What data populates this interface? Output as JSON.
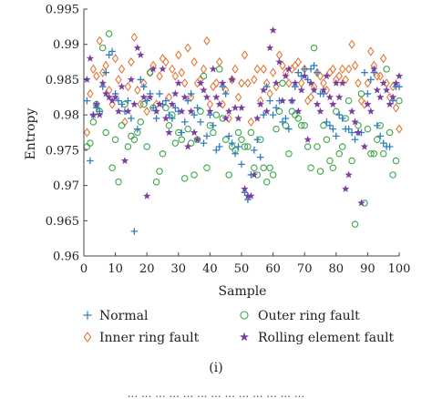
{
  "chart_data": {
    "type": "scatter",
    "xlabel": "Sample",
    "ylabel": "Entropy",
    "xlim": [
      0,
      100
    ],
    "ylim": [
      0.96,
      0.995
    ],
    "xticks": [
      0,
      10,
      20,
      30,
      40,
      50,
      60,
      70,
      80,
      90,
      100
    ],
    "yticks": [
      0.96,
      0.965,
      0.97,
      0.975,
      0.98,
      0.985,
      0.99,
      0.995
    ],
    "xtick_labels": [
      "0",
      "10",
      "20",
      "30",
      "40",
      "50",
      "60",
      "70",
      "80",
      "90",
      "100"
    ],
    "ytick_labels": [
      "0.96",
      "0.965",
      "0.97",
      "0.975",
      "0.98",
      "0.985",
      "0.99",
      "0.995"
    ],
    "grid": false,
    "legend_position": "bottom",
    "panel_label": "(i)",
    "caption_fragment": "... ... ... ... ... ... ... ... ... ... ... ... ...",
    "series": [
      {
        "name": "Normal",
        "marker": "plus",
        "color": "#2f7ec1",
        "x": [
          1,
          2,
          3,
          4,
          5,
          6,
          7,
          8,
          9,
          10,
          11,
          12,
          13,
          14,
          15,
          16,
          17,
          18,
          19,
          20,
          21,
          22,
          23,
          24,
          25,
          26,
          27,
          28,
          29,
          30,
          31,
          32,
          33,
          34,
          35,
          36,
          37,
          38,
          39,
          40,
          41,
          42,
          43,
          44,
          45,
          46,
          47,
          48,
          49,
          50,
          51,
          52,
          53,
          54,
          55,
          56,
          57,
          58,
          59,
          60,
          61,
          62,
          63,
          64,
          65,
          66,
          67,
          68,
          69,
          70,
          71,
          72,
          73,
          74,
          75,
          76,
          77,
          78,
          79,
          80,
          81,
          82,
          83,
          84,
          85,
          86,
          87,
          88,
          89,
          90,
          91,
          92,
          93,
          94,
          95,
          96,
          97,
          98,
          99,
          100
        ],
        "y": [
          0.982,
          0.9735,
          0.98,
          0.981,
          0.9805,
          0.984,
          0.986,
          0.9885,
          0.989,
          0.983,
          0.982,
          0.9815,
          0.9805,
          0.982,
          0.9795,
          0.9635,
          0.978,
          0.985,
          0.984,
          0.982,
          0.983,
          0.981,
          0.9795,
          0.983,
          0.9815,
          0.982,
          0.98,
          0.9795,
          0.981,
          0.9805,
          0.9775,
          0.979,
          0.982,
          0.983,
          0.98,
          0.981,
          0.979,
          0.976,
          0.977,
          0.98,
          0.9785,
          0.975,
          0.9755,
          0.984,
          0.983,
          0.977,
          0.976,
          0.9745,
          0.9755,
          0.973,
          0.969,
          0.968,
          0.9715,
          0.975,
          0.9765,
          0.974,
          0.98,
          0.984,
          0.982,
          0.98,
          0.981,
          0.982,
          0.979,
          0.9795,
          0.978,
          0.982,
          0.984,
          0.986,
          0.9855,
          0.9865,
          0.985,
          0.9865,
          0.987,
          0.986,
          0.983,
          0.983,
          0.979,
          0.9785,
          0.978,
          0.977,
          0.98,
          0.9795,
          0.978,
          0.978,
          0.9775,
          0.9765,
          0.9775,
          0.9775,
          0.986,
          0.983,
          0.985,
          0.986,
          0.9785,
          0.977,
          0.976,
          0.9755,
          0.9755,
          0.982,
          0.984,
          0.984
        ]
      },
      {
        "name": "Inner ring fault",
        "marker": "diamond",
        "color": "#e07a3a",
        "x": [
          1,
          2,
          3,
          4,
          5,
          6,
          7,
          8,
          9,
          10,
          11,
          12,
          13,
          14,
          15,
          16,
          17,
          18,
          19,
          20,
          21,
          22,
          23,
          24,
          25,
          26,
          27,
          28,
          29,
          30,
          31,
          32,
          33,
          34,
          35,
          36,
          37,
          38,
          39,
          40,
          41,
          42,
          43,
          44,
          45,
          46,
          47,
          48,
          49,
          50,
          51,
          52,
          53,
          54,
          55,
          56,
          57,
          58,
          59,
          60,
          61,
          62,
          63,
          64,
          65,
          66,
          67,
          68,
          69,
          70,
          71,
          72,
          73,
          74,
          75,
          76,
          77,
          78,
          79,
          80,
          81,
          82,
          83,
          84,
          85,
          86,
          87,
          88,
          89,
          90,
          91,
          92,
          93,
          94,
          95,
          96,
          97,
          98,
          99,
          100
        ],
        "y": [
          0.9775,
          0.983,
          0.9865,
          0.9855,
          0.9905,
          0.986,
          0.987,
          0.9835,
          0.9815,
          0.988,
          0.985,
          0.9865,
          0.979,
          0.984,
          0.9875,
          0.991,
          0.9835,
          0.9815,
          0.9845,
          0.9805,
          0.986,
          0.987,
          0.9815,
          0.9855,
          0.988,
          0.9875,
          0.9825,
          0.9865,
          0.9855,
          0.9885,
          0.986,
          0.9845,
          0.9895,
          0.9825,
          0.9875,
          0.9845,
          0.985,
          0.9865,
          0.9905,
          0.9815,
          0.984,
          0.9845,
          0.9875,
          0.9815,
          0.9835,
          0.9795,
          0.985,
          0.9865,
          0.9825,
          0.9845,
          0.9885,
          0.9845,
          0.979,
          0.985,
          0.9865,
          0.982,
          0.9865,
          0.9845,
          0.983,
          0.986,
          0.984,
          0.9885,
          0.987,
          0.986,
          0.9845,
          0.9865,
          0.987,
          0.9875,
          0.9845,
          0.9865,
          0.982,
          0.9825,
          0.984,
          0.986,
          0.9855,
          0.9845,
          0.9835,
          0.986,
          0.9865,
          0.985,
          0.9855,
          0.9865,
          0.985,
          0.9865,
          0.99,
          0.987,
          0.9845,
          0.982,
          0.9815,
          0.9845,
          0.989,
          0.987,
          0.9855,
          0.9855,
          0.988,
          0.9845,
          0.9825,
          0.984,
          0.981,
          0.978
        ]
      },
      {
        "name": "Outer ring fault",
        "marker": "circle",
        "color": "#3da64a",
        "x": [
          1,
          2,
          3,
          4,
          5,
          6,
          7,
          8,
          9,
          10,
          11,
          12,
          13,
          14,
          15,
          16,
          17,
          18,
          19,
          20,
          21,
          22,
          23,
          24,
          25,
          26,
          27,
          28,
          29,
          30,
          31,
          32,
          33,
          34,
          35,
          36,
          37,
          38,
          39,
          40,
          41,
          42,
          43,
          44,
          45,
          46,
          47,
          48,
          49,
          50,
          51,
          52,
          53,
          54,
          55,
          56,
          57,
          58,
          59,
          60,
          61,
          62,
          63,
          64,
          65,
          66,
          67,
          68,
          69,
          70,
          71,
          72,
          73,
          74,
          75,
          76,
          77,
          78,
          79,
          80,
          81,
          82,
          83,
          84,
          85,
          86,
          87,
          88,
          89,
          90,
          91,
          92,
          93,
          94,
          95,
          96,
          97,
          98,
          99,
          100
        ],
        "y": [
          0.9755,
          0.976,
          0.979,
          0.9815,
          0.9805,
          0.9895,
          0.9775,
          0.9915,
          0.9725,
          0.9765,
          0.9705,
          0.9785,
          0.9815,
          0.9755,
          0.977,
          0.9765,
          0.9775,
          0.979,
          0.9815,
          0.9755,
          0.986,
          0.981,
          0.9705,
          0.972,
          0.9745,
          0.981,
          0.9785,
          0.98,
          0.976,
          0.9775,
          0.9765,
          0.971,
          0.978,
          0.976,
          0.9715,
          0.9765,
          0.9805,
          0.9855,
          0.9725,
          0.9785,
          0.9775,
          0.98,
          0.9865,
          0.9795,
          0.9765,
          0.9715,
          0.9755,
          0.975,
          0.9775,
          0.9765,
          0.9755,
          0.9755,
          0.9775,
          0.9725,
          0.9715,
          0.9765,
          0.9725,
          0.9705,
          0.9725,
          0.9715,
          0.978,
          0.9805,
          0.9845,
          0.9785,
          0.9745,
          0.9805,
          0.98,
          0.9795,
          0.9785,
          0.9785,
          0.9755,
          0.9725,
          0.9895,
          0.9755,
          0.972,
          0.9785,
          0.9765,
          0.9735,
          0.9725,
          0.9805,
          0.9745,
          0.9755,
          0.9795,
          0.982,
          0.9735,
          0.9645,
          0.9785,
          0.983,
          0.9675,
          0.978,
          0.9745,
          0.9745,
          0.9765,
          0.9785,
          0.9745,
          0.9865,
          0.9775,
          0.9715,
          0.9735,
          0.982
        ]
      },
      {
        "name": "Rolling element fault",
        "marker": "star",
        "color": "#7b3fa0",
        "x": [
          1,
          2,
          3,
          4,
          5,
          6,
          7,
          8,
          9,
          10,
          11,
          12,
          13,
          14,
          15,
          16,
          17,
          18,
          19,
          20,
          21,
          22,
          23,
          24,
          25,
          26,
          27,
          28,
          29,
          30,
          31,
          32,
          33,
          34,
          35,
          36,
          37,
          38,
          39,
          40,
          41,
          42,
          43,
          44,
          45,
          46,
          47,
          48,
          49,
          50,
          51,
          52,
          53,
          54,
          55,
          56,
          57,
          58,
          59,
          60,
          61,
          62,
          63,
          64,
          65,
          66,
          67,
          68,
          69,
          70,
          71,
          72,
          73,
          74,
          75,
          76,
          77,
          78,
          79,
          80,
          81,
          82,
          83,
          84,
          85,
          86,
          87,
          88,
          89,
          90,
          91,
          92,
          93,
          94,
          95,
          96,
          97,
          98,
          99,
          100
        ],
        "y": [
          0.985,
          0.988,
          0.98,
          0.9815,
          0.98,
          0.9845,
          0.983,
          0.9825,
          0.982,
          0.9825,
          0.9805,
          0.984,
          0.9735,
          0.9805,
          0.985,
          0.9815,
          0.9895,
          0.9885,
          0.9825,
          0.9685,
          0.9825,
          0.9865,
          0.9805,
          0.9815,
          0.9865,
          0.9795,
          0.9775,
          0.9815,
          0.983,
          0.9845,
          0.9805,
          0.9825,
          0.9755,
          0.9805,
          0.9775,
          0.9765,
          0.9845,
          0.9835,
          0.9825,
          0.9805,
          0.9865,
          0.9825,
          0.9815,
          0.9845,
          0.9795,
          0.9805,
          0.985,
          0.981,
          0.9795,
          0.981,
          0.9695,
          0.9685,
          0.9685,
          0.9715,
          0.9795,
          0.9815,
          0.9835,
          0.9805,
          0.9895,
          0.992,
          0.9845,
          0.9875,
          0.982,
          0.9855,
          0.9865,
          0.982,
          0.9845,
          0.9805,
          0.9835,
          0.9855,
          0.9765,
          0.9845,
          0.9835,
          0.9815,
          0.9805,
          0.9835,
          0.9855,
          0.9825,
          0.9815,
          0.9845,
          0.9825,
          0.9845,
          0.9695,
          0.9715,
          0.9805,
          0.979,
          0.9775,
          0.9675,
          0.9755,
          0.9815,
          0.9805,
          0.9865,
          0.9835,
          0.9825,
          0.9845,
          0.9835,
          0.9815,
          0.9825,
          0.9845,
          0.9855
        ]
      }
    ]
  }
}
